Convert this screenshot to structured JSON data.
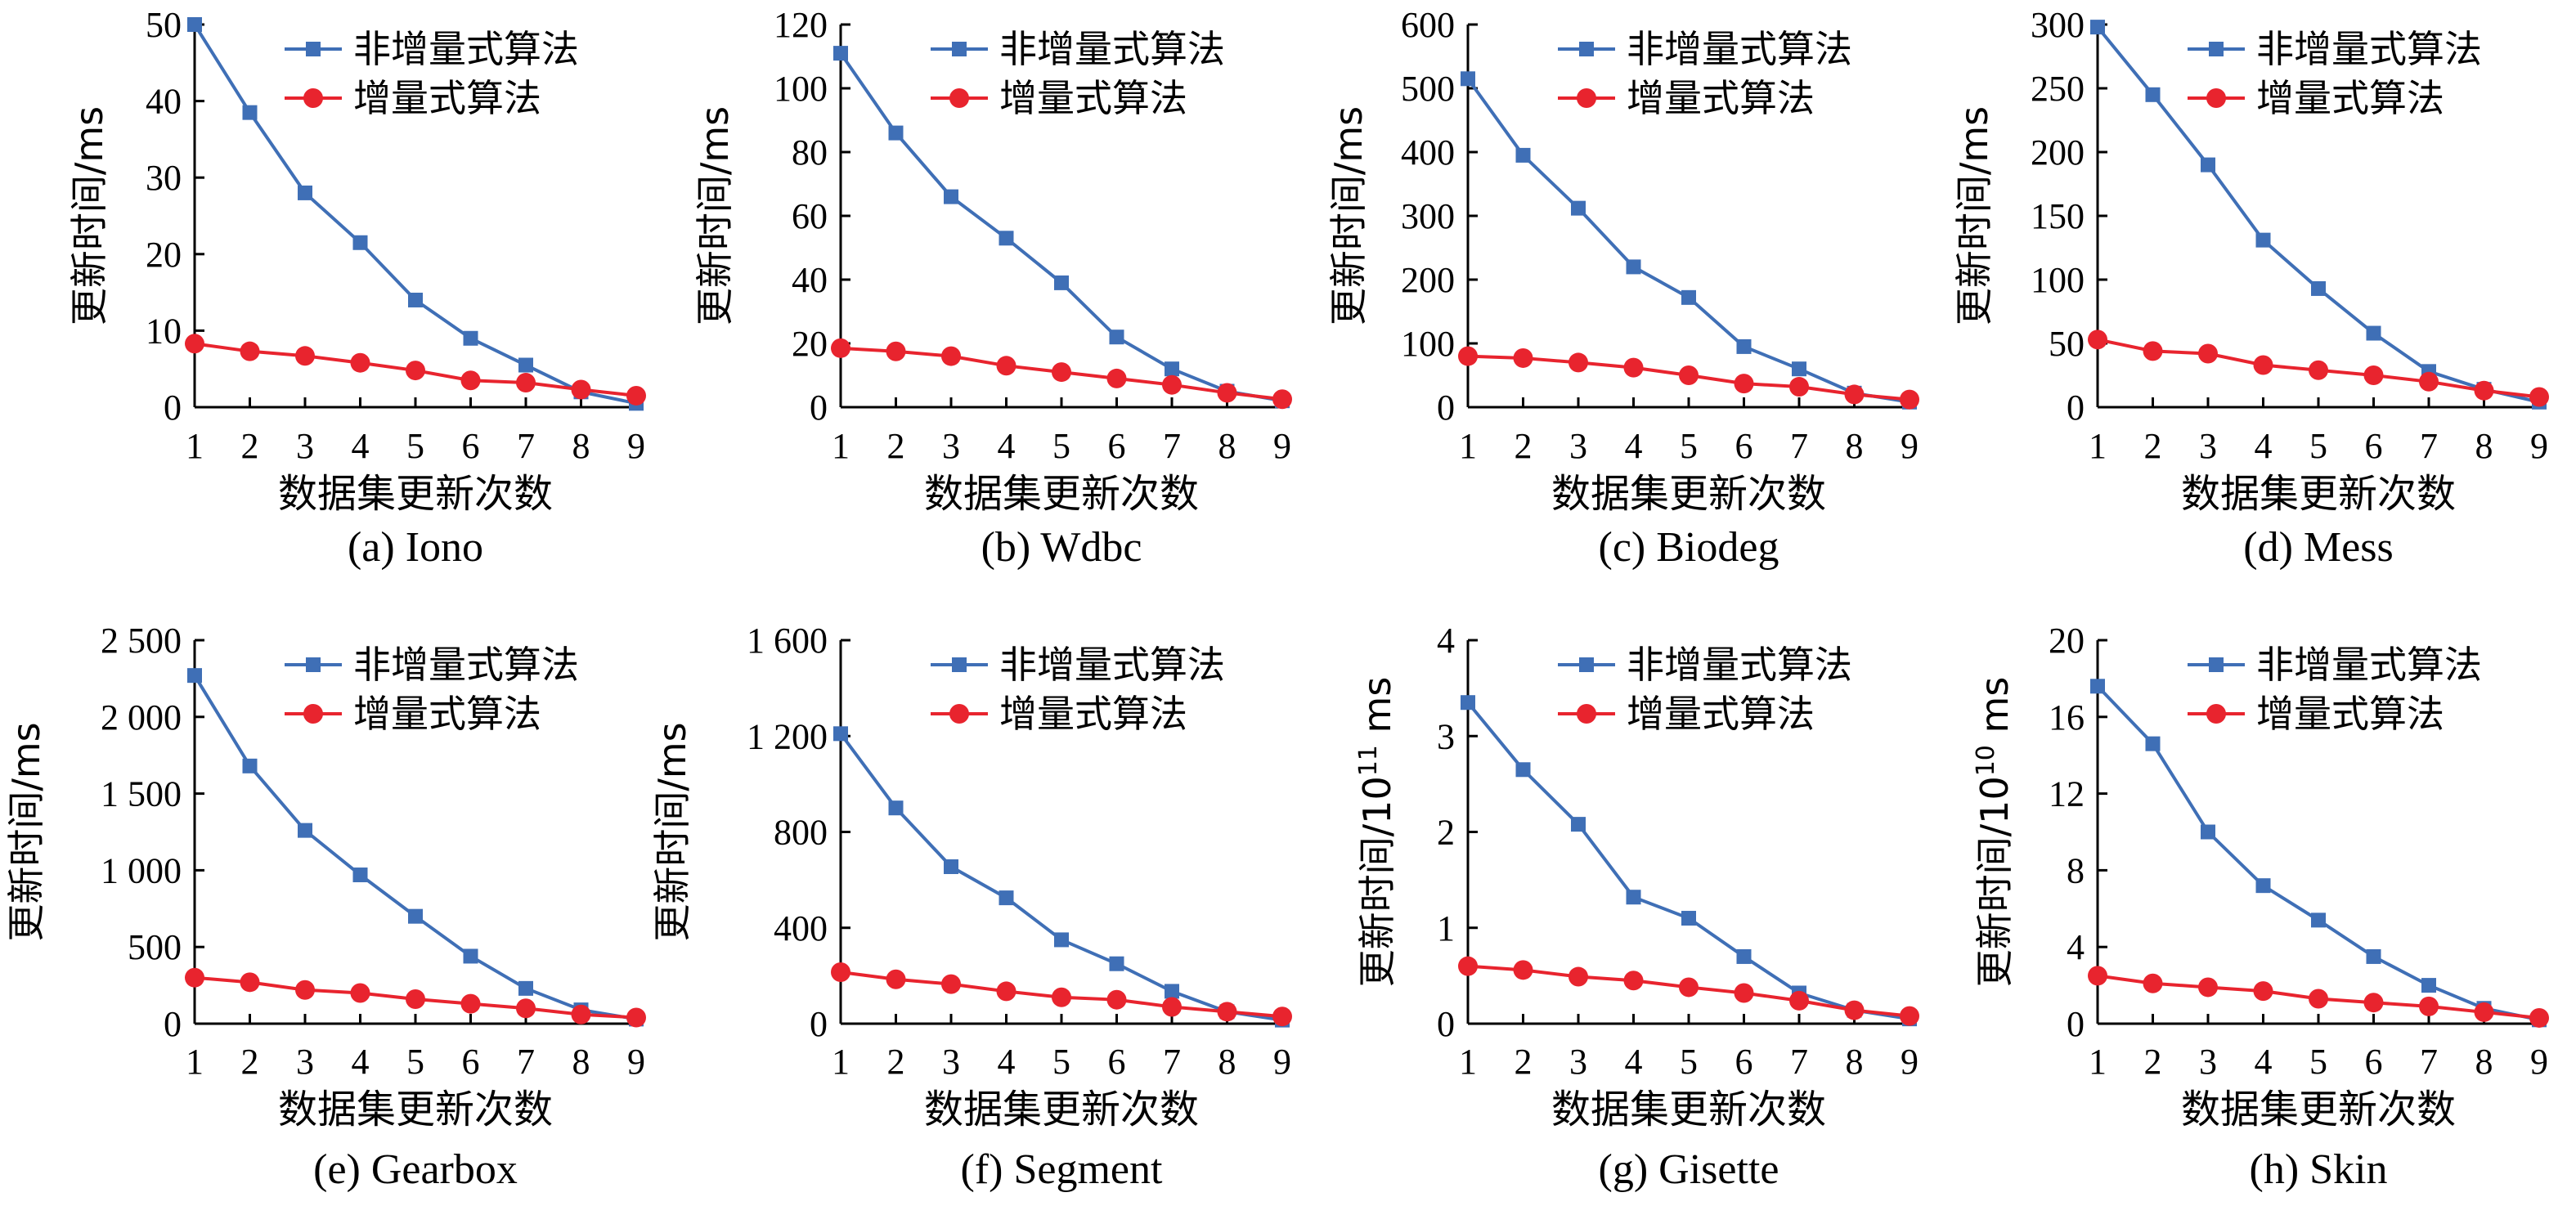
{
  "colors": {
    "non_incremental": "#3F6FB6",
    "incremental": "#E8242E",
    "axis": "#000000"
  },
  "chart_data": [
    {
      "type": "line",
      "caption": "(a) Iono",
      "xlabel": "数据集更新次数",
      "ylabel": "更新时间/ms",
      "ylabel_exp": "",
      "ylabel_unit": "",
      "x": [
        1,
        2,
        3,
        4,
        5,
        6,
        7,
        8,
        9
      ],
      "ylim": [
        0,
        50
      ],
      "yticks": [
        0,
        10,
        20,
        30,
        40,
        50
      ],
      "ytick_labels": [
        "0",
        "10",
        "20",
        "30",
        "40",
        "50"
      ],
      "series": [
        {
          "name": "非增量式算法",
          "values": [
            50,
            38.5,
            28,
            21.5,
            14,
            9,
            5.5,
            2,
            0.5
          ]
        },
        {
          "name": "增量式算法",
          "values": [
            8.3,
            7.3,
            6.7,
            5.8,
            4.8,
            3.5,
            3.2,
            2.3,
            1.5
          ]
        }
      ]
    },
    {
      "type": "line",
      "caption": "(b) Wdbc",
      "xlabel": "数据集更新次数",
      "ylabel": "更新时间/ms",
      "ylabel_exp": "",
      "ylabel_unit": "",
      "x": [
        1,
        2,
        3,
        4,
        5,
        6,
        7,
        8,
        9
      ],
      "ylim": [
        0,
        120
      ],
      "yticks": [
        0,
        20,
        40,
        60,
        80,
        100,
        120
      ],
      "ytick_labels": [
        "0",
        "20",
        "40",
        "60",
        "80",
        "100",
        "120"
      ],
      "series": [
        {
          "name": "非增量式算法",
          "values": [
            111,
            86,
            66,
            53,
            39,
            22,
            12,
            5,
            2
          ]
        },
        {
          "name": "增量式算法",
          "values": [
            18.5,
            17.5,
            16,
            13,
            11,
            9,
            7,
            4.5,
            2.5
          ]
        }
      ]
    },
    {
      "type": "line",
      "caption": "(c) Biodeg",
      "xlabel": "数据集更新次数",
      "ylabel": "更新时间/ms",
      "ylabel_exp": "",
      "ylabel_unit": "",
      "x": [
        1,
        2,
        3,
        4,
        5,
        6,
        7,
        8,
        9
      ],
      "ylim": [
        0,
        600
      ],
      "yticks": [
        0,
        100,
        200,
        300,
        400,
        500,
        600
      ],
      "ytick_labels": [
        "0",
        "100",
        "200",
        "300",
        "400",
        "500",
        "600"
      ],
      "series": [
        {
          "name": "非增量式算法",
          "values": [
            515,
            395,
            312,
            220,
            172,
            95,
            60,
            22,
            8
          ]
        },
        {
          "name": "增量式算法",
          "values": [
            80,
            77,
            70,
            62,
            50,
            37,
            32,
            20,
            12
          ]
        }
      ]
    },
    {
      "type": "line",
      "caption": "(d) Mess",
      "xlabel": "数据集更新次数",
      "ylabel": "更新时间/ms",
      "ylabel_exp": "",
      "ylabel_unit": "",
      "x": [
        1,
        2,
        3,
        4,
        5,
        6,
        7,
        8,
        9
      ],
      "ylim": [
        0,
        300
      ],
      "yticks": [
        0,
        50,
        100,
        150,
        200,
        250,
        300
      ],
      "ytick_labels": [
        "0",
        "50",
        "100",
        "150",
        "200",
        "250",
        "300"
      ],
      "series": [
        {
          "name": "非增量式算法",
          "values": [
            298,
            245,
            190,
            131,
            93,
            58,
            28,
            14,
            4
          ]
        },
        {
          "name": "增量式算法",
          "values": [
            53,
            44,
            42,
            33,
            29,
            25,
            20,
            13,
            8
          ]
        }
      ]
    },
    {
      "type": "line",
      "caption": "(e) Gearbox",
      "xlabel": "数据集更新次数",
      "ylabel": "更新时间/ms",
      "ylabel_exp": "",
      "ylabel_unit": "",
      "x": [
        1,
        2,
        3,
        4,
        5,
        6,
        7,
        8,
        9
      ],
      "ylim": [
        0,
        2500
      ],
      "yticks": [
        0,
        500,
        1000,
        1500,
        2000,
        2500
      ],
      "ytick_labels": [
        "0",
        "500",
        "1 000",
        "1 500",
        "2 000",
        "2 500"
      ],
      "series": [
        {
          "name": "非增量式算法",
          "values": [
            2270,
            1680,
            1260,
            970,
            700,
            440,
            230,
            90,
            30
          ]
        },
        {
          "name": "增量式算法",
          "values": [
            300,
            270,
            220,
            200,
            160,
            130,
            100,
            60,
            40
          ]
        }
      ]
    },
    {
      "type": "line",
      "caption": "(f) Segment",
      "xlabel": "数据集更新次数",
      "ylabel": "更新时间/ms",
      "ylabel_exp": "",
      "ylabel_unit": "",
      "x": [
        1,
        2,
        3,
        4,
        5,
        6,
        7,
        8,
        9
      ],
      "ylim": [
        0,
        1600
      ],
      "yticks": [
        0,
        400,
        800,
        1200,
        1600
      ],
      "ytick_labels": [
        "0",
        "400",
        "800",
        "1 200",
        "1 600"
      ],
      "series": [
        {
          "name": "非增量式算法",
          "values": [
            1210,
            900,
            655,
            525,
            350,
            250,
            135,
            50,
            15
          ]
        },
        {
          "name": "增量式算法",
          "values": [
            215,
            185,
            165,
            135,
            110,
            100,
            70,
            50,
            30
          ]
        }
      ]
    },
    {
      "type": "line",
      "caption": "(g) Gisette",
      "xlabel": "数据集更新次数",
      "ylabel": "更新时间/10",
      "ylabel_exp": "11",
      "ylabel_unit": " ms",
      "x": [
        1,
        2,
        3,
        4,
        5,
        6,
        7,
        8,
        9
      ],
      "ylim": [
        0,
        4
      ],
      "yticks": [
        0,
        1,
        2,
        3,
        4
      ],
      "ytick_labels": [
        "0",
        "1",
        "2",
        "3",
        "4"
      ],
      "series": [
        {
          "name": "非增量式算法",
          "values": [
            3.35,
            2.65,
            2.08,
            1.32,
            1.1,
            0.7,
            0.32,
            0.14,
            0.05
          ]
        },
        {
          "name": "增量式算法",
          "values": [
            0.6,
            0.56,
            0.49,
            0.45,
            0.38,
            0.32,
            0.24,
            0.14,
            0.08
          ]
        }
      ]
    },
    {
      "type": "line",
      "caption": "(h) Skin",
      "xlabel": "数据集更新次数",
      "ylabel": "更新时间/10",
      "ylabel_exp": "10",
      "ylabel_unit": " ms",
      "x": [
        1,
        2,
        3,
        4,
        5,
        6,
        7,
        8,
        9
      ],
      "ylim": [
        0,
        20
      ],
      "yticks": [
        0,
        4,
        8,
        12,
        16,
        20
      ],
      "ytick_labels": [
        "0",
        "4",
        "8",
        "12",
        "16",
        "20"
      ],
      "series": [
        {
          "name": "非增量式算法",
          "values": [
            17.6,
            14.6,
            10,
            7.2,
            5.4,
            3.5,
            2,
            0.8,
            0.2
          ]
        },
        {
          "name": "增量式算法",
          "values": [
            2.5,
            2.1,
            1.9,
            1.7,
            1.3,
            1.1,
            0.9,
            0.6,
            0.3
          ]
        }
      ]
    }
  ]
}
